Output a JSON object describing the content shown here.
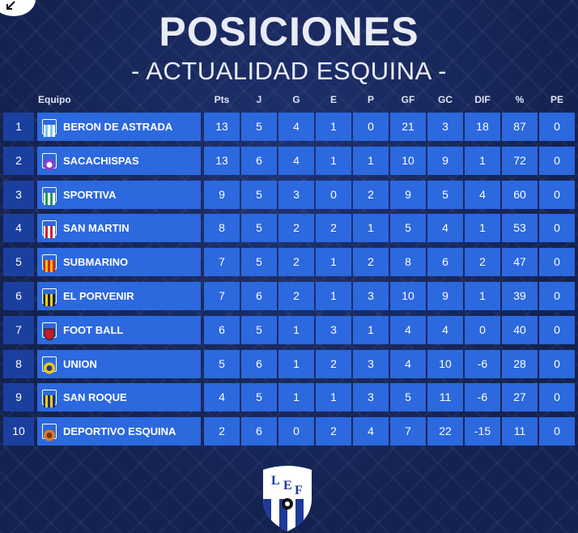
{
  "title": "POSICIONES",
  "subtitle": "- ACTUALIDAD ESQUINA -",
  "headers": {
    "team": "Equipo",
    "cols": [
      "Pts",
      "J",
      "G",
      "E",
      "P",
      "GF",
      "GC",
      "DIF",
      "%",
      "PE"
    ]
  },
  "rows": [
    {
      "pos": "1",
      "team": "BERON DE ASTRADA",
      "crest": "striped-shield-icon",
      "crest_colors": [
        "#7ec8f0",
        "#ffffff"
      ],
      "stats": [
        "13",
        "5",
        "4",
        "1",
        "0",
        "21",
        "3",
        "18",
        "87",
        "0"
      ]
    },
    {
      "pos": "2",
      "team": "SACACHISPAS",
      "crest": "round-badge-icon",
      "crest_colors": [
        "#8e3fc9",
        "#ffffff"
      ],
      "stats": [
        "13",
        "6",
        "4",
        "1",
        "1",
        "10",
        "9",
        "1",
        "72",
        "0"
      ]
    },
    {
      "pos": "3",
      "team": "SPORTIVA",
      "crest": "striped-shield-icon",
      "crest_colors": [
        "#1e9e45",
        "#ffffff"
      ],
      "stats": [
        "9",
        "5",
        "3",
        "0",
        "2",
        "9",
        "5",
        "4",
        "60",
        "0"
      ]
    },
    {
      "pos": "4",
      "team": "SAN MARTIN",
      "crest": "striped-shield-icon",
      "crest_colors": [
        "#cc2231",
        "#ffffff"
      ],
      "stats": [
        "8",
        "5",
        "2",
        "2",
        "1",
        "5",
        "4",
        "1",
        "53",
        "0"
      ]
    },
    {
      "pos": "5",
      "team": "SUBMARINO",
      "crest": "striped-shield-icon",
      "crest_colors": [
        "#f2c20f",
        "#d8261e"
      ],
      "stats": [
        "7",
        "5",
        "2",
        "1",
        "2",
        "8",
        "6",
        "2",
        "47",
        "0"
      ]
    },
    {
      "pos": "6",
      "team": "EL PORVENIR",
      "crest": "striped-shield-icon",
      "crest_colors": [
        "#f4d21a",
        "#222222"
      ],
      "stats": [
        "7",
        "6",
        "2",
        "1",
        "3",
        "10",
        "9",
        "1",
        "39",
        "0"
      ]
    },
    {
      "pos": "7",
      "team": "FOOT BALL",
      "crest": "solid-shield-icon",
      "crest_colors": [
        "#c21a2b",
        "#222222"
      ],
      "stats": [
        "6",
        "5",
        "1",
        "3",
        "1",
        "4",
        "4",
        "0",
        "40",
        "0"
      ]
    },
    {
      "pos": "8",
      "team": "UNION",
      "crest": "round-badge-icon",
      "crest_colors": [
        "#f0c818",
        "#1c3a7a"
      ],
      "stats": [
        "5",
        "6",
        "1",
        "2",
        "3",
        "4",
        "10",
        "-6",
        "28",
        "0"
      ]
    },
    {
      "pos": "9",
      "team": "SAN ROQUE",
      "crest": "striped-shield-icon",
      "crest_colors": [
        "#f5d113",
        "#1e2f78"
      ],
      "stats": [
        "4",
        "5",
        "1",
        "1",
        "3",
        "5",
        "11",
        "-6",
        "27",
        "0"
      ]
    },
    {
      "pos": "10",
      "team": "DEPORTIVO ESQUINA",
      "crest": "round-badge-icon",
      "crest_colors": [
        "#e07a2a",
        "#6a3a1a"
      ],
      "stats": [
        "2",
        "6",
        "0",
        "2",
        "4",
        "7",
        "22",
        "-15",
        "11",
        "0"
      ]
    }
  ],
  "logo": {
    "letters": [
      "L",
      "E",
      "F"
    ],
    "icon": "league-shield-icon"
  }
}
